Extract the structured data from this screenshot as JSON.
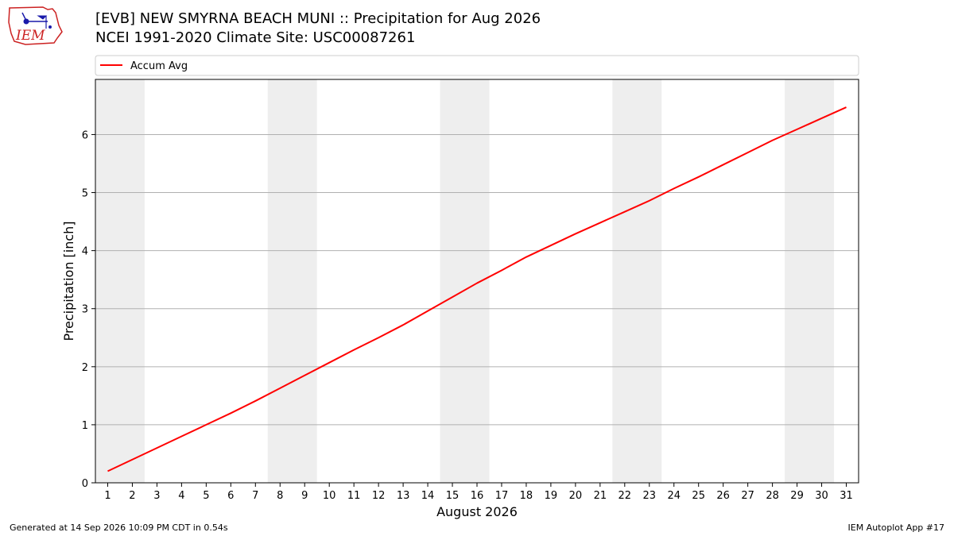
{
  "header": {
    "title_line1": "[EVB] NEW SMYRNA BEACH MUNI :: Precipitation for Aug 2026",
    "title_line2": "NCEI 1991-2020 Climate Site: USC00087261",
    "logo_text": "IEM"
  },
  "footer": {
    "left": "Generated at 14 Sep 2026 10:09 PM CDT in 0.54s",
    "right": "IEM Autoplot App #17"
  },
  "colors": {
    "series": "#ff0000",
    "weekend_band": "#eeeeee",
    "grid": "#b0b0b0",
    "logo": "#1a1aaa",
    "logo_text": "#cc2222"
  },
  "chart_data": {
    "type": "line",
    "xlabel": "August 2026",
    "ylabel": "Precipitation [inch]",
    "xlim": [
      0.5,
      31.5
    ],
    "ylim": [
      0,
      6.95
    ],
    "yticks": [
      0,
      1,
      2,
      3,
      4,
      5,
      6
    ],
    "xticks": [
      1,
      2,
      3,
      4,
      5,
      6,
      7,
      8,
      9,
      10,
      11,
      12,
      13,
      14,
      15,
      16,
      17,
      18,
      19,
      20,
      21,
      22,
      23,
      24,
      25,
      26,
      27,
      28,
      29,
      30,
      31
    ],
    "grid": "horizontal",
    "legend_placement": "top, above plot",
    "shaded_bands": [
      [
        0.5,
        2.5
      ],
      [
        7.5,
        9.5
      ],
      [
        14.5,
        16.5
      ],
      [
        21.5,
        23.5
      ],
      [
        28.5,
        30.5
      ]
    ],
    "series": [
      {
        "name": "Accum Avg",
        "x": [
          1,
          2,
          3,
          4,
          5,
          6,
          7,
          8,
          9,
          10,
          11,
          12,
          13,
          14,
          15,
          16,
          17,
          18,
          19,
          20,
          21,
          22,
          23,
          24,
          25,
          26,
          27,
          28,
          29,
          30,
          31
        ],
        "values": [
          0.2,
          0.4,
          0.6,
          0.8,
          1.0,
          1.2,
          1.41,
          1.63,
          1.85,
          2.07,
          2.29,
          2.5,
          2.72,
          2.96,
          3.2,
          3.44,
          3.66,
          3.89,
          4.09,
          4.29,
          4.48,
          4.67,
          4.86,
          5.07,
          5.27,
          5.48,
          5.69,
          5.9,
          6.09,
          6.28,
          6.47
        ]
      }
    ]
  }
}
